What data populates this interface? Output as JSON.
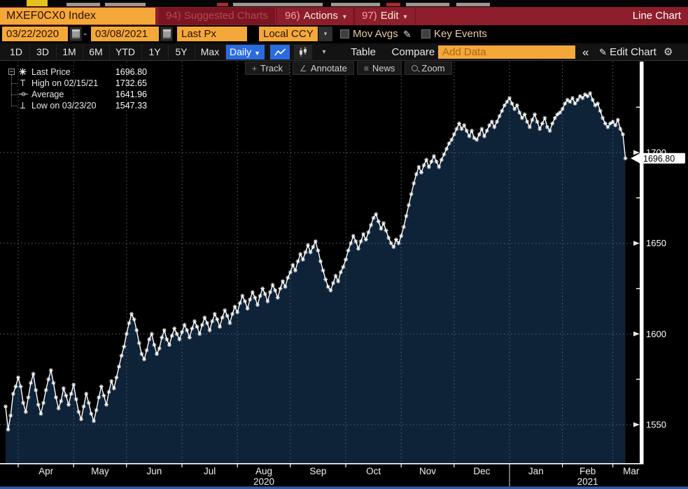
{
  "title_bar": {
    "security": "MXEF0CX0 Index",
    "suggested_charts": "94) Suggested Charts",
    "actions_num": "96)",
    "actions_label": "Actions",
    "edit_num": "97)",
    "edit_label": "Edit",
    "chart_type": "Line Chart"
  },
  "settings_bar": {
    "start_date": "03/22/2020",
    "range_separator": "-",
    "end_date": "03/08/2021",
    "price_field": "Last Px",
    "currency": "Local CCY",
    "mov_avgs": "Mov Avgs",
    "key_events": "Key Events"
  },
  "period_bar": {
    "ranges": [
      "1D",
      "3D",
      "1M",
      "6M",
      "YTD",
      "1Y",
      "5Y",
      "Max"
    ],
    "frequency": "Daily",
    "table": "Table",
    "compare": "Compare",
    "add_data_placeholder": "Add Data",
    "collapse": "«",
    "edit_chart": "Edit Chart"
  },
  "chart_toolbar": {
    "track": "Track",
    "annotate": "Annotate",
    "news": "News",
    "zoom": "Zoom"
  },
  "legend": {
    "rows": [
      {
        "marker": "asterisk",
        "label": "Last Price",
        "value": "1696.80"
      },
      {
        "marker": "high",
        "label": "High on 02/15/21",
        "value": "1732.65"
      },
      {
        "marker": "average",
        "label": "Average",
        "value": "1641.96"
      },
      {
        "marker": "low",
        "label": "Low on 03/23/20",
        "value": "1547.33"
      }
    ]
  },
  "colors": {
    "accent_orange": "#f5a83a",
    "titlebar_red": "#8e1e2c",
    "active_blue": "#2a6ce0",
    "chart_fill": "#0e2238",
    "grid_line": "#54667b",
    "series_line": "#ffffff",
    "axis": "#ffffff",
    "bottom_strip_blue": "#2e5ea1"
  },
  "chart_data": {
    "type": "line",
    "series_name": "MXEF0CX0 Index - Last Px",
    "frequency": "daily",
    "date_range": {
      "start": "03/22/2020",
      "end": "03/08/2021"
    },
    "ylim": [
      1529,
      1750
    ],
    "yticks": [
      1550,
      1600,
      1650,
      1700
    ],
    "minor_yticks": [
      1575,
      1625,
      1675,
      1725
    ],
    "grid": "dotted",
    "legend_position": "top-left",
    "x_month_labels": [
      "Apr",
      "May",
      "Jun",
      "Jul",
      "Aug",
      "Sep",
      "Oct",
      "Nov",
      "Dec",
      "Jan",
      "Feb",
      "Mar"
    ],
    "year_labels": [
      {
        "text": "2020",
        "under_month": "Aug"
      },
      {
        "text": "2021",
        "under_month": "Feb"
      }
    ],
    "month_start_indices": [
      5,
      27,
      48,
      70,
      92,
      113,
      135,
      157,
      178,
      200,
      221,
      241
    ],
    "last_price": 1696.8,
    "last_price_label": "1696.80",
    "high": {
      "date": "02/15/21",
      "value": 1732.65
    },
    "low": {
      "date": "03/23/20",
      "value": 1547.33
    },
    "average": 1641.96,
    "values": [
      1560,
      1547.33,
      1555,
      1567,
      1571,
      1576,
      1571,
      1562,
      1557,
      1565,
      1573,
      1578,
      1569,
      1561,
      1556,
      1562,
      1569,
      1575,
      1580,
      1573,
      1565,
      1559,
      1563,
      1570,
      1566,
      1561,
      1567,
      1572,
      1564,
      1557,
      1553,
      1560,
      1567,
      1562,
      1556,
      1552,
      1558,
      1565,
      1571,
      1566,
      1561,
      1568,
      1574,
      1570,
      1576,
      1582,
      1588,
      1593,
      1600,
      1606,
      1611,
      1608,
      1602,
      1595,
      1589,
      1586,
      1591,
      1597,
      1600,
      1594,
      1589,
      1592,
      1598,
      1602,
      1597,
      1594,
      1599,
      1603,
      1600,
      1597,
      1601,
      1605,
      1602,
      1598,
      1603,
      1607,
      1604,
      1600,
      1605,
      1609,
      1606,
      1602,
      1607,
      1611,
      1608,
      1604,
      1609,
      1613,
      1610,
      1606,
      1611,
      1615,
      1612,
      1617,
      1621,
      1618,
      1614,
      1619,
      1623,
      1620,
      1616,
      1621,
      1625,
      1622,
      1618,
      1623,
      1627,
      1624,
      1620,
      1625,
      1629,
      1626,
      1631,
      1634,
      1638,
      1635,
      1640,
      1644,
      1641,
      1645,
      1649,
      1645,
      1648,
      1651,
      1646,
      1640,
      1635,
      1630,
      1626,
      1624,
      1628,
      1632,
      1629,
      1634,
      1637,
      1641,
      1646,
      1650,
      1654,
      1651,
      1647,
      1651,
      1655,
      1652,
      1656,
      1660,
      1664,
      1666,
      1662,
      1658,
      1661,
      1657,
      1653,
      1650,
      1648,
      1652,
      1650,
      1654,
      1659,
      1665,
      1671,
      1677,
      1683,
      1688,
      1692,
      1689,
      1693,
      1696,
      1692,
      1695,
      1698,
      1695,
      1692,
      1696,
      1699,
      1702,
      1705,
      1707,
      1710,
      1713,
      1716,
      1713,
      1715,
      1712,
      1709,
      1712,
      1708,
      1707,
      1710,
      1713,
      1709,
      1712,
      1715,
      1717,
      1714,
      1717,
      1720,
      1723,
      1726,
      1728,
      1730,
      1727,
      1724,
      1726,
      1722,
      1719,
      1721,
      1717,
      1714,
      1718,
      1721,
      1717,
      1713,
      1716,
      1719,
      1714,
      1712,
      1716,
      1719,
      1721,
      1722,
      1724,
      1727,
      1729,
      1728,
      1730,
      1727,
      1729,
      1731,
      1730,
      1732,
      1731,
      1732.65,
      1729,
      1726,
      1727,
      1723,
      1719,
      1716,
      1714,
      1716,
      1717,
      1715,
      1718,
      1713,
      1710,
      1696.8
    ]
  }
}
